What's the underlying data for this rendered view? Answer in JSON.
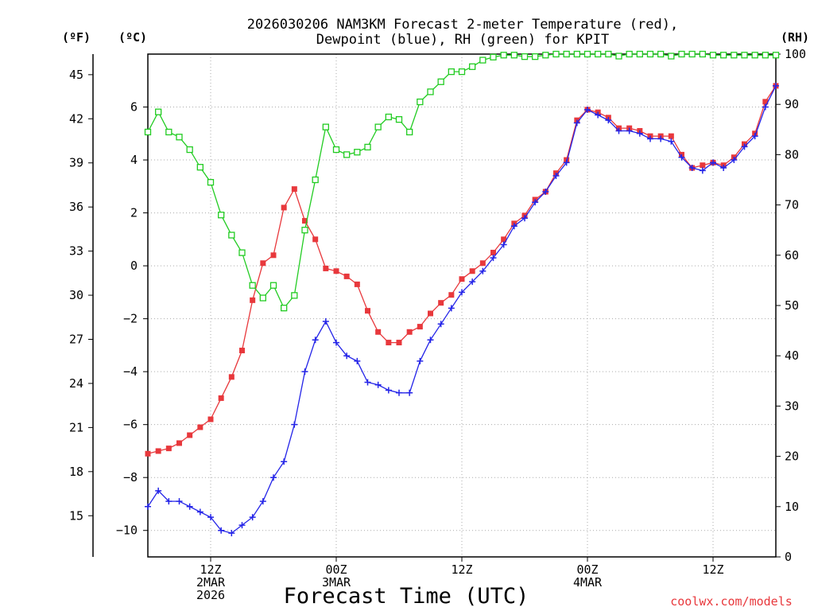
{
  "chart_data": {
    "type": "line",
    "title": [
      "2026030206 NAM3KM Forecast 2-meter Temperature (red),",
      "Dewpoint (blue), RH (green) for KPIT"
    ],
    "xlabel": "Forecast Time (UTC)",
    "credit": "coolwx.com/models",
    "units": {
      "fahrenheit": "(ºF)",
      "celsius": "(ºC)",
      "rh": "(RH)"
    },
    "x": [
      0,
      1,
      2,
      3,
      4,
      5,
      6,
      7,
      8,
      9,
      10,
      11,
      12,
      13,
      14,
      15,
      16,
      17,
      18,
      19,
      20,
      21,
      22,
      23,
      24,
      25,
      26,
      27,
      28,
      29,
      30,
      31,
      32,
      33,
      34,
      35,
      36,
      37,
      38,
      39,
      40,
      41,
      42,
      43,
      44,
      45,
      46,
      47,
      48,
      49,
      50,
      51,
      52,
      53,
      54,
      55,
      56,
      57,
      58,
      59,
      60
    ],
    "xlim": [
      0,
      60
    ],
    "x_ticks": [
      {
        "x": 6,
        "lines": [
          "12Z",
          "2MAR",
          "2026"
        ]
      },
      {
        "x": 18,
        "lines": [
          "00Z",
          "3MAR"
        ]
      },
      {
        "x": 30,
        "lines": [
          "12Z"
        ]
      },
      {
        "x": 42,
        "lines": [
          "00Z",
          "4MAR"
        ]
      },
      {
        "x": 54,
        "lines": [
          "12Z"
        ]
      }
    ],
    "celsius_axis": {
      "ylim": [
        -11,
        8
      ],
      "ticks": [
        "6",
        "4",
        "2",
        "0",
        "−2",
        "−4",
        "−6",
        "−8",
        "−10"
      ],
      "tick_values": [
        6,
        4,
        2,
        0,
        -2,
        -4,
        -6,
        -8,
        -10
      ]
    },
    "fahrenheit_axis": {
      "ticks": [
        "45",
        "42",
        "39",
        "36",
        "33",
        "30",
        "27",
        "24",
        "21",
        "18",
        "15"
      ],
      "tick_values": [
        45,
        42,
        39,
        36,
        33,
        30,
        27,
        24,
        21,
        18,
        15
      ]
    },
    "rh_axis": {
      "ylim": [
        0,
        100
      ],
      "ticks": [
        "100",
        "90",
        "80",
        "70",
        "60",
        "50",
        "40",
        "30",
        "20",
        "10",
        "0"
      ],
      "tick_values": [
        100,
        90,
        80,
        70,
        60,
        50,
        40,
        30,
        20,
        10,
        0
      ]
    },
    "grid": true,
    "series": [
      {
        "name": "2-meter Temperature",
        "color": "#e8383c",
        "marker": "filled-square",
        "axis": "celsius",
        "values": [
          -7.1,
          -7.0,
          -6.9,
          -6.7,
          -6.4,
          -6.1,
          -5.8,
          -5.0,
          -4.2,
          -3.2,
          -1.3,
          0.1,
          0.4,
          2.2,
          2.9,
          1.7,
          1.0,
          -0.1,
          -0.2,
          -0.4,
          -0.7,
          -1.7,
          -2.5,
          -2.9,
          -2.9,
          -2.5,
          -2.3,
          -1.8,
          -1.4,
          -1.1,
          -0.5,
          -0.2,
          0.1,
          0.5,
          1.0,
          1.6,
          1.9,
          2.5,
          2.8,
          3.5,
          4.0,
          5.5,
          5.9,
          5.8,
          5.6,
          5.2,
          5.2,
          5.1,
          4.9,
          4.9,
          4.9,
          4.2,
          3.7,
          3.8,
          3.9,
          3.8,
          4.1,
          4.6,
          5.0,
          6.2,
          6.8
        ]
      },
      {
        "name": "Dewpoint",
        "color": "#2424e8",
        "marker": "plus",
        "axis": "celsius",
        "values": [
          -9.1,
          -8.5,
          -8.9,
          -8.9,
          -9.1,
          -9.3,
          -9.5,
          -10.0,
          -10.1,
          -9.8,
          -9.5,
          -8.9,
          -8.0,
          -7.4,
          -6.0,
          -4.0,
          -2.8,
          -2.1,
          -2.9,
          -3.4,
          -3.6,
          -4.4,
          -4.5,
          -4.7,
          -4.8,
          -4.8,
          -3.6,
          -2.8,
          -2.2,
          -1.6,
          -1.0,
          -0.6,
          -0.2,
          0.3,
          0.8,
          1.5,
          1.8,
          2.4,
          2.8,
          3.4,
          3.9,
          5.4,
          5.9,
          5.7,
          5.5,
          5.1,
          5.1,
          5.0,
          4.8,
          4.8,
          4.7,
          4.1,
          3.7,
          3.6,
          3.9,
          3.7,
          4.0,
          4.5,
          4.9,
          6.0,
          6.8
        ]
      },
      {
        "name": "RH",
        "color": "#22cc22",
        "marker": "open-square",
        "axis": "rh",
        "values": [
          84.5,
          88.5,
          84.5,
          83.5,
          81,
          77.5,
          74.5,
          68,
          64,
          60.5,
          54,
          51.5,
          54,
          49.5,
          52,
          65,
          75,
          85.5,
          81,
          80,
          80.5,
          81.5,
          85.5,
          87.5,
          87,
          84.5,
          90.5,
          92.5,
          94.5,
          96.5,
          96.5,
          97.5,
          98.8,
          99.4,
          99.8,
          99.8,
          99.5,
          99.5,
          99.8,
          100,
          100,
          100,
          100,
          100,
          100,
          99.6,
          100,
          100,
          100,
          100,
          99.6,
          100,
          100,
          100,
          99.8,
          99.8,
          99.8,
          99.8,
          99.8,
          99.8,
          99.8
        ]
      }
    ]
  }
}
